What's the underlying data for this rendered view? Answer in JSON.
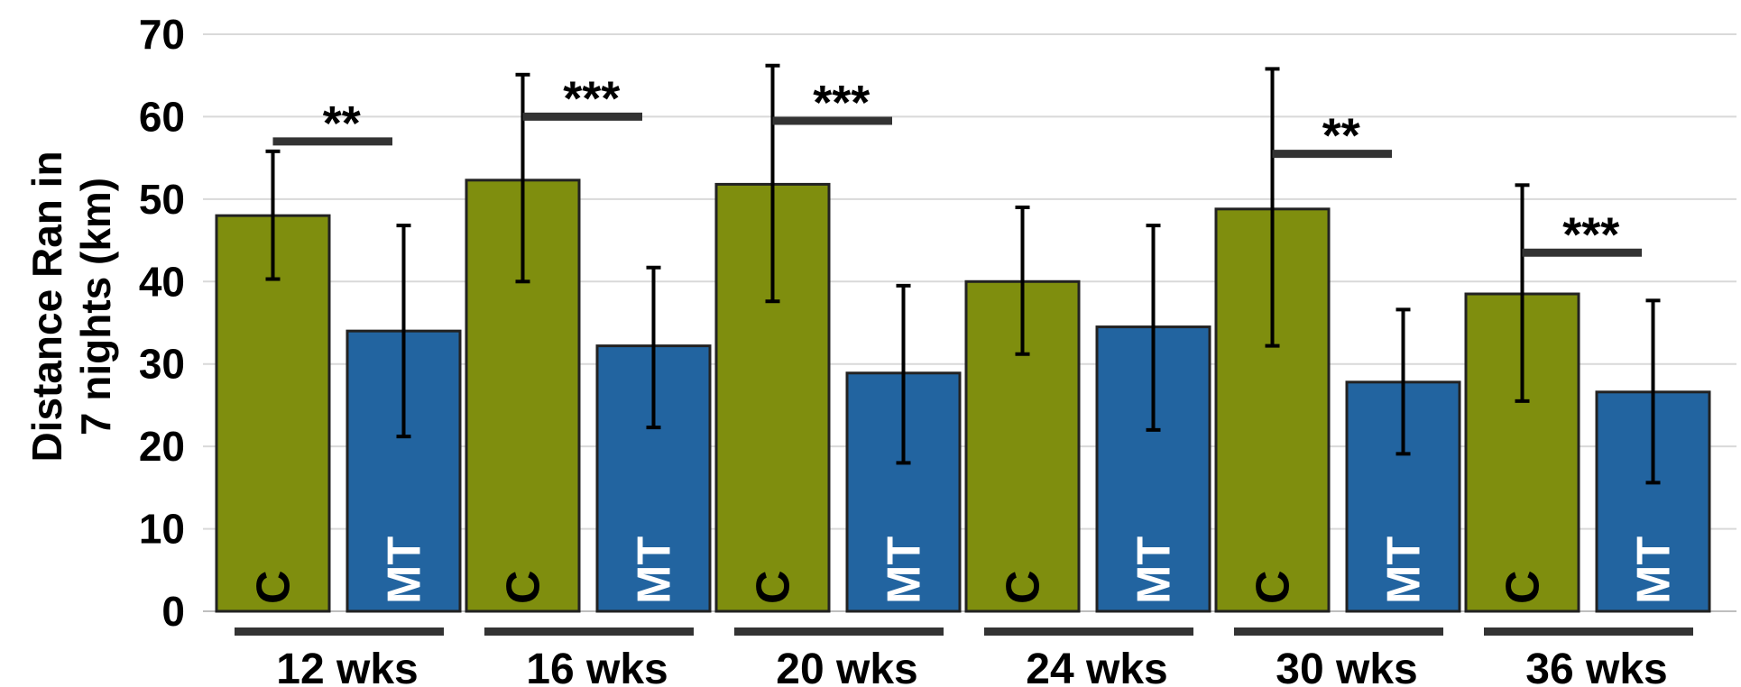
{
  "chart_data": {
    "type": "bar",
    "ylabel_lines": [
      "Distance Ran in",
      "7 nights (km)"
    ],
    "ylim": [
      0,
      70
    ],
    "yticks": [
      0,
      10,
      20,
      30,
      40,
      50,
      60,
      70
    ],
    "grid": true,
    "categories": [
      "12 wks",
      "16 wks",
      "20 wks",
      "24 wks",
      "30 wks",
      "36 wks"
    ],
    "series": [
      {
        "name": "C",
        "color": "#7f8e0e",
        "label_color": "#000000",
        "values": [
          48,
          52.3,
          51.8,
          40,
          48.8,
          38.5
        ],
        "err_low": [
          40.3,
          40,
          37.6,
          31.2,
          32.2,
          25.5
        ],
        "err_high": [
          55.8,
          65.1,
          66.2,
          49,
          65.8,
          51.7
        ]
      },
      {
        "name": "MT",
        "color": "#2264a0",
        "label_color": "#ffffff",
        "values": [
          34,
          32.2,
          28.9,
          34.5,
          27.8,
          26.6
        ],
        "err_low": [
          21.2,
          22.3,
          18,
          22,
          19.1,
          15.6
        ],
        "err_high": [
          46.8,
          41.7,
          39.5,
          46.8,
          36.6,
          37.7
        ]
      }
    ],
    "significance": [
      {
        "category": "12 wks",
        "label": "**",
        "y": 57
      },
      {
        "category": "16 wks",
        "label": "***",
        "y": 60
      },
      {
        "category": "20 wks",
        "label": "***",
        "y": 59.5
      },
      {
        "category": "30 wks",
        "label": "**",
        "y": 55.5
      },
      {
        "category": "36 wks",
        "label": "***",
        "y": 43.5
      }
    ],
    "colors": {
      "grid": "#d9d9d9",
      "bar_outline": "#222222",
      "error": "#000000",
      "sig": "#333333",
      "group_bar": "#333333"
    }
  }
}
